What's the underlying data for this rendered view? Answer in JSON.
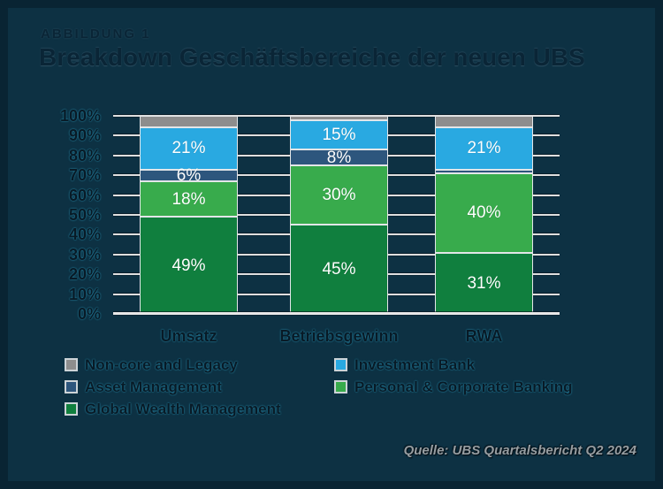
{
  "figure": {
    "background": "#0d3143"
  },
  "header": {
    "kicker": "ABBILDUNG 1",
    "title": "Breakdown Geschäftsbereiche der neuen UBS"
  },
  "source": {
    "text": "Quelle: UBS Quartalsbericht Q2 2024"
  },
  "legend": {
    "items": [
      {
        "label": "Non-core and Legacy",
        "color": "#8d8d8d"
      },
      {
        "label": "Investment Bank",
        "color": "#29a9e1"
      },
      {
        "label": "Asset Management",
        "color": "#2d567d"
      },
      {
        "label": "Personal & Corporate Banking",
        "color": "#38ab4c"
      },
      {
        "label": "Global Wealth Management",
        "color": "#107f3e"
      }
    ]
  },
  "chart_data": {
    "type": "bar",
    "variant": "stacked-100-percent",
    "title": "Breakdown Geschäftsbereiche der neuen UBS",
    "categories": [
      "Umsatz",
      "Betriebsgewinn",
      "RWA"
    ],
    "series": [
      {
        "name": "Global Wealth Management",
        "color": "#107f3e",
        "values": [
          49,
          45,
          31
        ],
        "labels": [
          "49%",
          "45%",
          "31%"
        ]
      },
      {
        "name": "Personal & Corporate Banking",
        "color": "#38ab4c",
        "values": [
          18,
          30,
          40
        ],
        "labels": [
          "18%",
          "30%",
          "40%"
        ]
      },
      {
        "name": "Asset Management",
        "color": "#2d567d",
        "values": [
          6,
          8,
          2
        ],
        "labels": [
          "6%",
          "8%",
          ""
        ]
      },
      {
        "name": "Investment Bank",
        "color": "#29a9e1",
        "values": [
          21,
          15,
          21
        ],
        "labels": [
          "21%",
          "15%",
          "21%"
        ]
      },
      {
        "name": "Non-core and Legacy",
        "color": "#8d8d8d",
        "values": [
          6,
          2,
          6
        ],
        "labels": [
          "",
          "",
          ""
        ]
      }
    ],
    "yticks": [
      "100%",
      "90%",
      "80%",
      "70%",
      "60%",
      "50%",
      "40%",
      "30%",
      "20%",
      "10%",
      "0%"
    ],
    "ylim": [
      0,
      100
    ],
    "grid": true,
    "legend_position": "bottom"
  }
}
